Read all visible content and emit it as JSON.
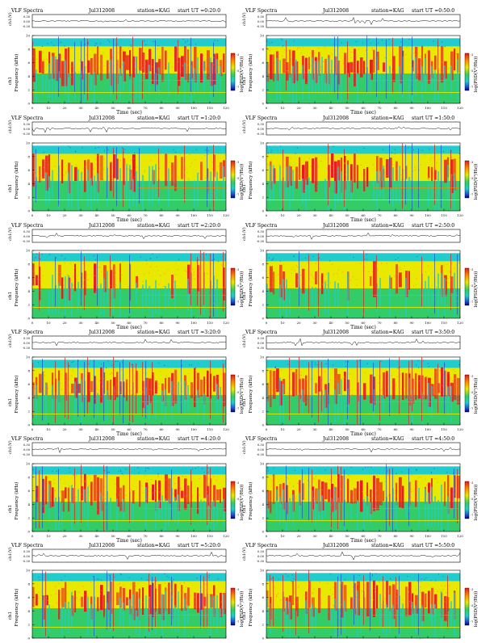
{
  "page_title": "VLF Spectra",
  "common": {
    "date": "Jul312008",
    "station": "station=KAG",
    "channel_label": "ch1",
    "amp_axis_label": "ch1(V)",
    "amp_ticks": [
      "0.30",
      "0.00",
      "-0.30"
    ],
    "freq_axis_label": "Frequency (kHz)",
    "freq_ticks": [
      "0",
      "2",
      "4",
      "6",
      "8",
      "10"
    ],
    "time_axis_label": "Time (sec)",
    "time_ticks": [
      "0",
      "10",
      "20",
      "30",
      "40",
      "50",
      "60",
      "70",
      "80",
      "90",
      "100",
      "110",
      "120"
    ],
    "colorbar_label": "log(PSD(V²/Hz))",
    "colorbar_ticks": [
      "-3",
      "-5",
      "-7"
    ]
  },
  "colors": {
    "red": "#e41a1c",
    "orange": "#ff8c00",
    "yellow": "#e8e800",
    "green": "#33cc66",
    "cyan": "#22cccc",
    "blue": "#1f4fd0",
    "darkblue": "#000088"
  },
  "chart_data": [
    {
      "type": "heatmap",
      "title": "VLF Spectra",
      "date": "Jul312008",
      "station": "station=KAG",
      "start_label": "start UT =0:20:0",
      "xlabel": "Time (sec)",
      "ylabel": "Frequency (kHz)",
      "xlim": [
        0,
        120
      ],
      "ylim": [
        0,
        10
      ],
      "intensity": "high"
    },
    {
      "type": "heatmap",
      "title": "VLF Spectra",
      "date": "Jul312008",
      "station": "station=KAG",
      "start_label": "start UT =0:50:0",
      "xlabel": "Time (sec)",
      "ylabel": "Frequency (kHz)",
      "xlim": [
        0,
        120
      ],
      "ylim": [
        0,
        10
      ],
      "intensity": "high"
    },
    {
      "type": "heatmap",
      "title": "VLF Spectra",
      "date": "Jul312008",
      "station": "station=KAG",
      "start_label": "start UT =1:20:0",
      "xlabel": "Time (sec)",
      "ylabel": "Frequency (kHz)",
      "xlim": [
        0,
        120
      ],
      "ylim": [
        0,
        10
      ],
      "intensity": "medium"
    },
    {
      "type": "heatmap",
      "title": "VLF Spectra",
      "date": "Jul312008",
      "station": "station=KAG",
      "start_label": "start UT =1:50:0",
      "xlabel": "Time (sec)",
      "ylabel": "Frequency (kHz)",
      "xlim": [
        0,
        120
      ],
      "ylim": [
        0,
        10
      ],
      "intensity": "medium"
    },
    {
      "type": "heatmap",
      "title": "VLF Spectra",
      "date": "Jul312008",
      "station": "station=KAG",
      "start_label": "start UT =2:20:0",
      "xlabel": "Time (sec)",
      "ylabel": "Frequency (kHz)",
      "xlim": [
        0,
        120
      ],
      "ylim": [
        0,
        10
      ],
      "intensity": "low"
    },
    {
      "type": "heatmap",
      "title": "VLF Spectra",
      "date": "Jul312008",
      "station": "station=KAG",
      "start_label": "start UT =2:50:0",
      "xlabel": "Time (sec)",
      "ylabel": "Frequency (kHz)",
      "xlim": [
        0,
        120
      ],
      "ylim": [
        0,
        10
      ],
      "intensity": "low"
    },
    {
      "type": "heatmap",
      "title": "VLF Spectra",
      "date": "Jul312008",
      "station": "station=KAG",
      "start_label": "start UT =3:20:0",
      "xlabel": "Time (sec)",
      "ylabel": "Frequency (kHz)",
      "xlim": [
        0,
        120
      ],
      "ylim": [
        0,
        10
      ],
      "intensity": "high"
    },
    {
      "type": "heatmap",
      "title": "VLF Spectra",
      "date": "Jul312008",
      "station": "station=KAG",
      "start_label": "start UT =3:50:0",
      "xlabel": "Time (sec)",
      "ylabel": "Frequency (kHz)",
      "xlim": [
        0,
        120
      ],
      "ylim": [
        0,
        10
      ],
      "intensity": "high"
    },
    {
      "type": "heatmap",
      "title": "VLF Spectra",
      "date": "Jul312008",
      "station": "station=KAG",
      "start_label": "start UT =4:20:0",
      "xlabel": "Time (sec)",
      "ylabel": "Frequency (kHz)",
      "xlim": [
        0,
        120
      ],
      "ylim": [
        0,
        10
      ],
      "intensity": "high"
    },
    {
      "type": "heatmap",
      "title": "VLF Spectra",
      "date": "Jul312008",
      "station": "station=KAG",
      "start_label": "start UT =4:50:0",
      "xlabel": "Time (sec)",
      "ylabel": "Frequency (kHz)",
      "xlim": [
        0,
        120
      ],
      "ylim": [
        0,
        10
      ],
      "intensity": "high"
    },
    {
      "type": "heatmap",
      "title": "VLF Spectra",
      "date": "Jul312008",
      "station": "station=KAG",
      "start_label": "start UT =5:20:0",
      "xlabel": "Time (sec)",
      "ylabel": "Frequency (kHz)",
      "xlim": [
        0,
        120
      ],
      "ylim": [
        0,
        10
      ],
      "intensity": "high"
    },
    {
      "type": "heatmap",
      "title": "VLF Spectra",
      "date": "Jul312008",
      "station": "station=KAG",
      "start_label": "start UT =5:50:0",
      "xlabel": "Time (sec)",
      "ylabel": "Frequency (kHz)",
      "xlim": [
        0,
        120
      ],
      "ylim": [
        0,
        10
      ],
      "intensity": "high"
    }
  ]
}
